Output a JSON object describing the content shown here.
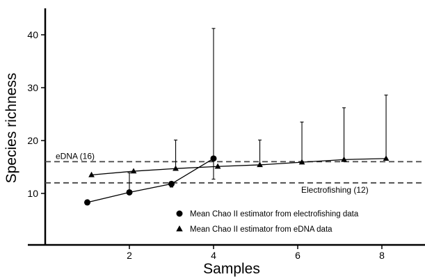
{
  "chart_data": {
    "type": "line",
    "xlabel": "Samples",
    "ylabel": "Species richness",
    "xlim": [
      0,
      9
    ],
    "ylim": [
      4,
      45
    ],
    "xticks": [
      2,
      4,
      6,
      8
    ],
    "yticks": [
      10,
      20,
      30,
      40
    ],
    "grid": false,
    "legend_position": "lower-right",
    "reference_lines": [
      {
        "label": "eDNA (16)",
        "value": 16
      },
      {
        "label": "Electrofishing (12)",
        "value": 12
      }
    ],
    "series": [
      {
        "name": "Mean Chao II estimator from electrofishing data",
        "marker": "circle",
        "x": [
          1,
          2,
          3,
          4
        ],
        "values": [
          8.3,
          10.2,
          11.8,
          16.6
        ],
        "upper": [
          null,
          13.9,
          null,
          41.2
        ],
        "lower": [
          null,
          null,
          11.2,
          12.7
        ]
      },
      {
        "name": "Mean Chao II estimator from eDNA data",
        "marker": "triangle",
        "x": [
          1.1,
          2.1,
          3.1,
          4.1,
          5.1,
          6.1,
          7.1,
          8.1
        ],
        "values": [
          13.5,
          14.2,
          14.7,
          15.1,
          15.4,
          15.9,
          16.4,
          16.6
        ],
        "upper": [
          null,
          null,
          20.1,
          null,
          20.1,
          23.5,
          26.2,
          28.6
        ],
        "lower": [
          null,
          null,
          null,
          null,
          null,
          null,
          null,
          null
        ]
      }
    ]
  }
}
